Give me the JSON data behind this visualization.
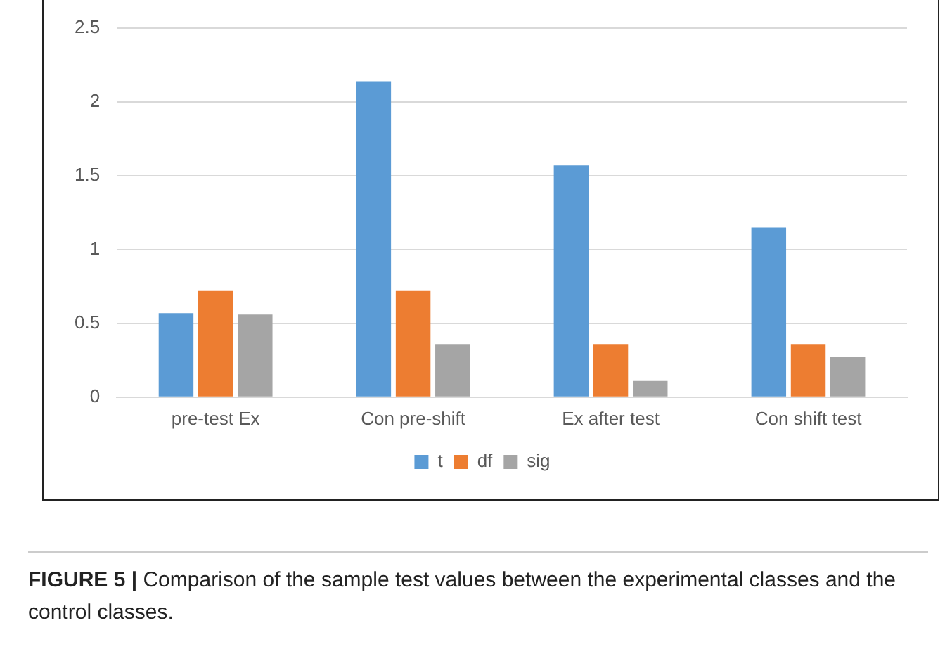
{
  "chart_data": {
    "type": "bar",
    "categories": [
      "pre-test Ex",
      "Con pre-shift",
      "Ex after test",
      "Con shift test"
    ],
    "series": [
      {
        "name": "t",
        "color": "#5b9bd5",
        "values": [
          0.57,
          2.14,
          1.57,
          1.15
        ]
      },
      {
        "name": "df",
        "color": "#ed7d31",
        "values": [
          0.72,
          0.72,
          0.36,
          0.36
        ]
      },
      {
        "name": "sig",
        "color": "#a5a5a5",
        "values": [
          0.56,
          0.36,
          0.11,
          0.27
        ]
      }
    ],
    "ylim": [
      0,
      2.5
    ],
    "yticks": [
      0,
      0.5,
      1,
      1.5,
      2,
      2.5
    ],
    "grid": "y",
    "legend": "bottom",
    "annotations": [
      "FIGURE 5 | Comparison of the sample test values between the experimental classes and the control classes."
    ]
  }
}
